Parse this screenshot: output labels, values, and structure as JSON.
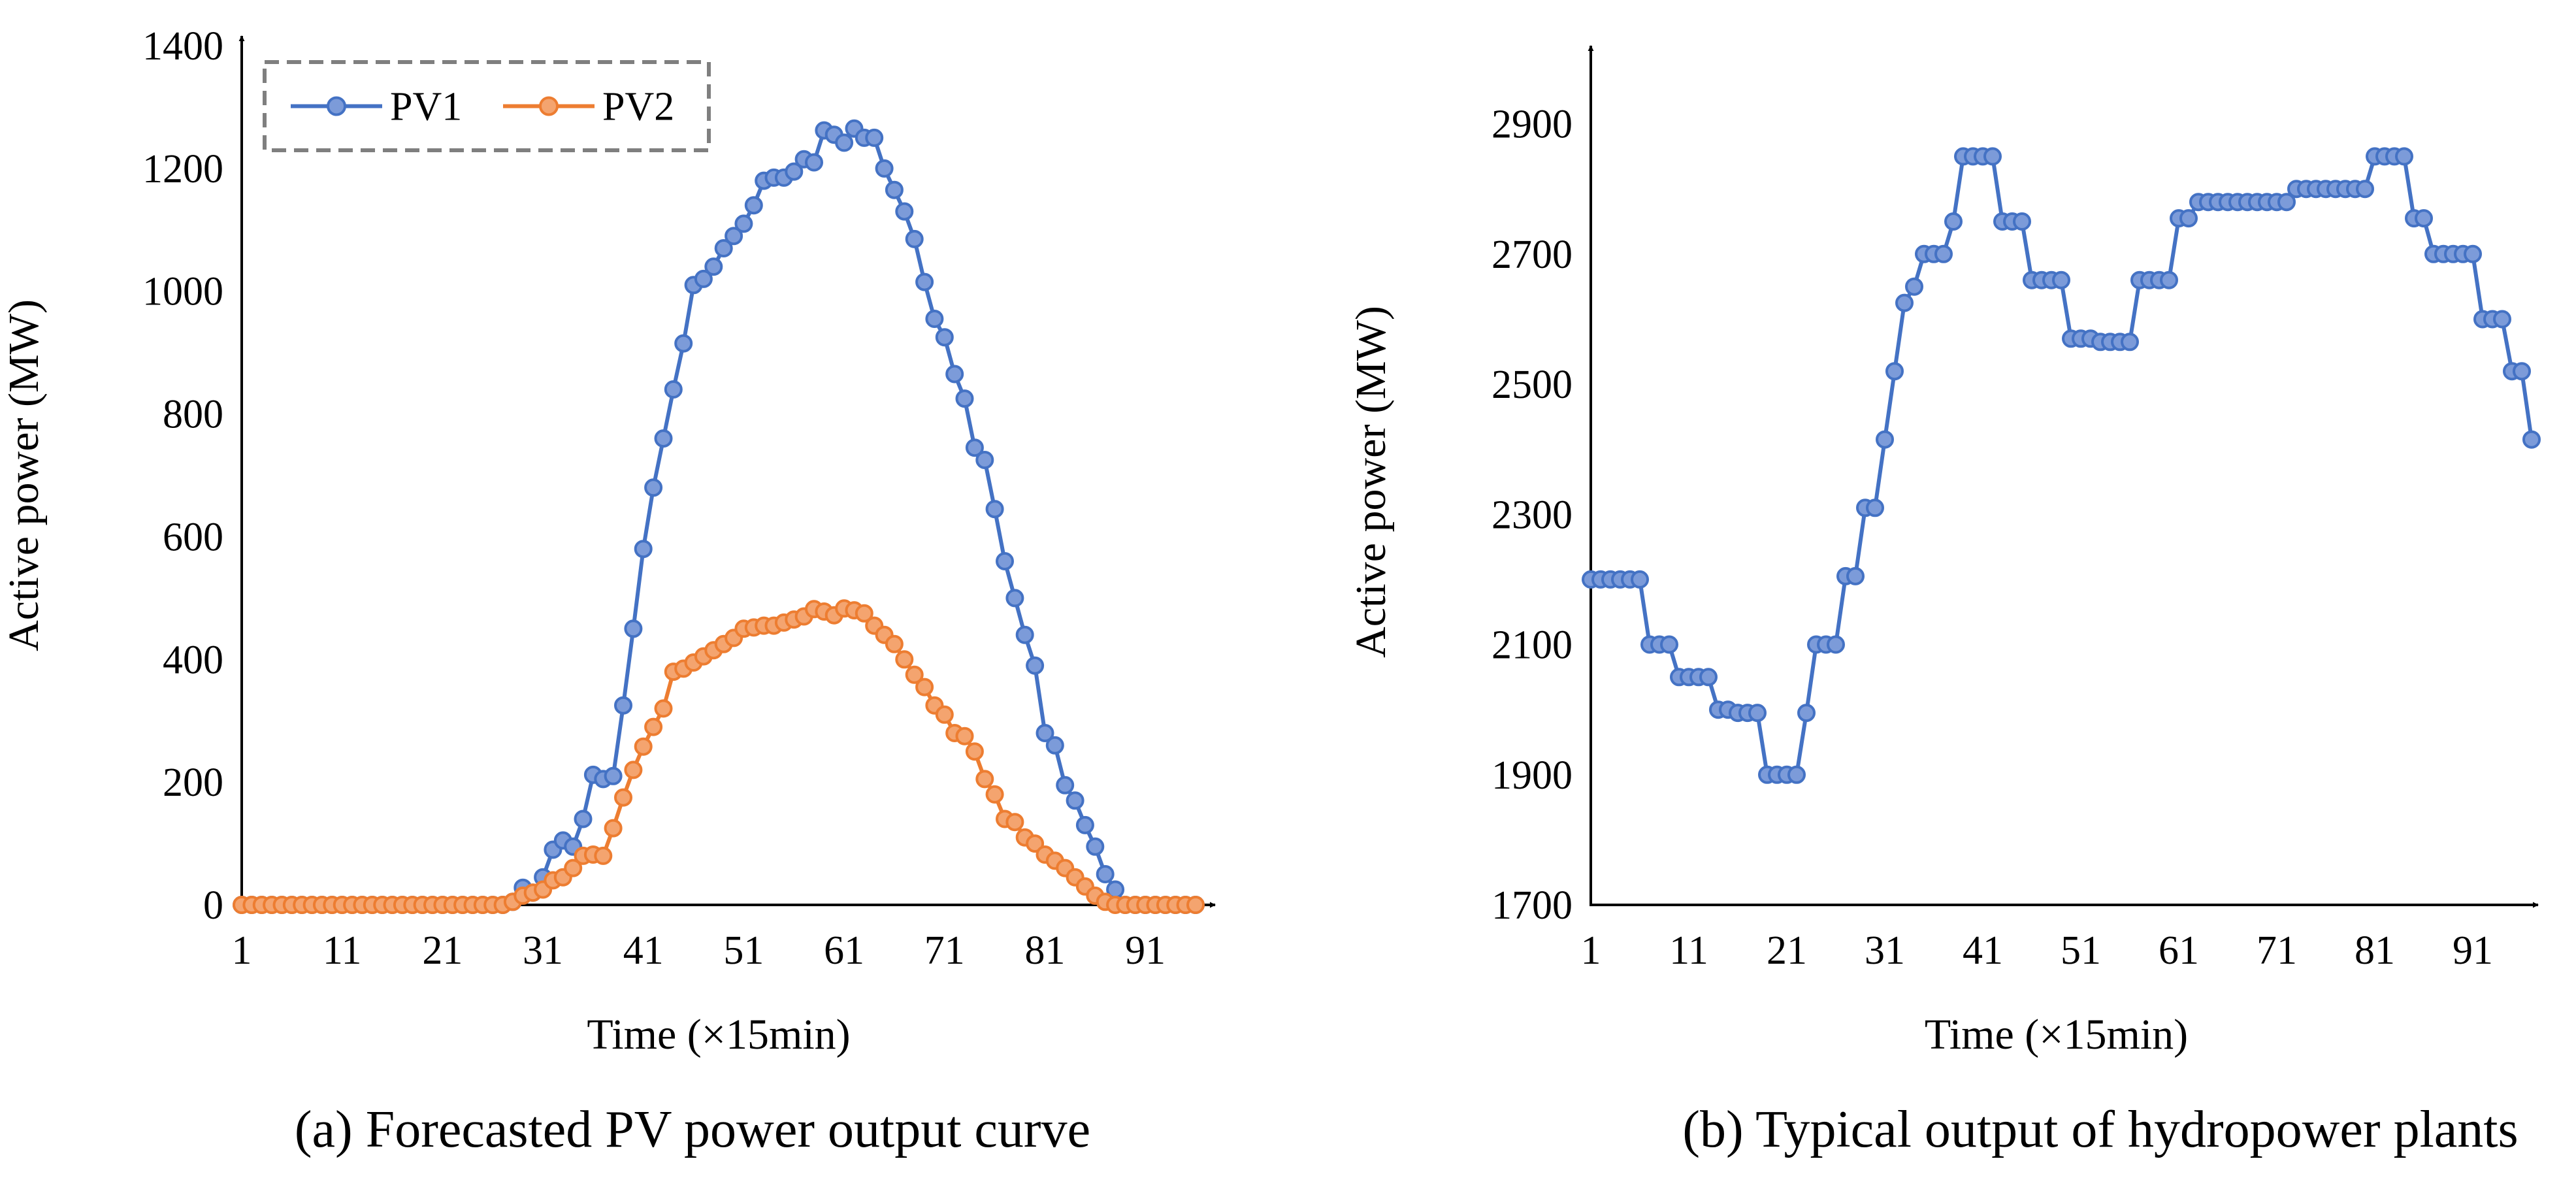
{
  "colors": {
    "pv1": "#4472C4",
    "pv1_marker": "#7C9BD9",
    "pv2": "#ED7D31",
    "pv2_marker": "#F4A46F",
    "hydro": "#4472C4",
    "hydro_marker": "#7C9BD9",
    "legend_border": "#7F7F7F",
    "axis": "#000000"
  },
  "chart_data": [
    {
      "type": "line",
      "caption": "(a) Forecasted PV power output curve",
      "xlabel": "Time (×15min)",
      "ylabel": "Active power (MW)",
      "xlim": [
        1,
        96
      ],
      "ylim": [
        0,
        1400
      ],
      "xticks": [
        1,
        11,
        21,
        31,
        41,
        51,
        61,
        71,
        81,
        91
      ],
      "xtick_labels": [
        "1",
        "11",
        "21",
        "31",
        "41",
        "51",
        "61",
        "71",
        "81",
        "91"
      ],
      "yticks": [
        0,
        200,
        400,
        600,
        800,
        1000,
        1200,
        1400
      ],
      "ytick_labels": [
        "0",
        "200",
        "400",
        "600",
        "800",
        "1000",
        "1200",
        "1400"
      ],
      "legend": {
        "position": "top-left",
        "entries": [
          "PV1",
          "PV2"
        ]
      },
      "series": [
        {
          "name": "PV1",
          "values": [
            0,
            0,
            0,
            0,
            0,
            0,
            0,
            0,
            0,
            0,
            0,
            0,
            0,
            0,
            0,
            0,
            0,
            0,
            0,
            0,
            0,
            0,
            0,
            0,
            0,
            0,
            0,
            5,
            28,
            20,
            45,
            90,
            105,
            95,
            140,
            212,
            205,
            210,
            325,
            450,
            580,
            680,
            760,
            840,
            915,
            1010,
            1020,
            1040,
            1070,
            1090,
            1110,
            1140,
            1180,
            1185,
            1185,
            1195,
            1215,
            1210,
            1262,
            1255,
            1242,
            1265,
            1250,
            1250,
            1200,
            1165,
            1130,
            1085,
            1015,
            955,
            925,
            865,
            825,
            745,
            725,
            645,
            560,
            500,
            440,
            390,
            280,
            260,
            195,
            170,
            130,
            95,
            50,
            25,
            0,
            0,
            0,
            0,
            0,
            0,
            0,
            0
          ]
        },
        {
          "name": "PV2",
          "values": [
            0,
            0,
            0,
            0,
            0,
            0,
            0,
            0,
            0,
            0,
            0,
            0,
            0,
            0,
            0,
            0,
            0,
            0,
            0,
            0,
            0,
            0,
            0,
            0,
            0,
            0,
            0,
            5,
            15,
            20,
            25,
            40,
            45,
            60,
            80,
            82,
            80,
            125,
            175,
            220,
            258,
            290,
            320,
            380,
            385,
            395,
            405,
            415,
            425,
            435,
            450,
            452,
            455,
            455,
            460,
            465,
            470,
            482,
            478,
            472,
            483,
            480,
            475,
            455,
            440,
            425,
            400,
            375,
            355,
            325,
            310,
            280,
            275,
            250,
            205,
            180,
            140,
            135,
            110,
            100,
            82,
            72,
            60,
            45,
            30,
            15,
            5,
            0,
            0,
            0,
            0,
            0,
            0,
            0,
            0,
            0
          ]
        }
      ]
    },
    {
      "type": "line",
      "caption": "(b) Typical output of hydropower plants",
      "xlabel": "Time (×15min)",
      "ylabel": "Active power (MW)",
      "xlim": [
        1,
        96
      ],
      "ylim": [
        1700,
        3000
      ],
      "xticks": [
        1,
        11,
        21,
        31,
        41,
        51,
        61,
        71,
        81,
        91
      ],
      "xtick_labels": [
        "1",
        "11",
        "21",
        "31",
        "41",
        "51",
        "61",
        "71",
        "81",
        "91"
      ],
      "yticks": [
        1700,
        1900,
        2100,
        2300,
        2500,
        2700,
        2900
      ],
      "ytick_labels": [
        "1700",
        "1900",
        "2100",
        "2300",
        "2500",
        "2700",
        "2900"
      ],
      "series": [
        {
          "name": "Hydropower",
          "values": [
            2200,
            2200,
            2200,
            2200,
            2200,
            2200,
            2100,
            2100,
            2100,
            2050,
            2050,
            2050,
            2050,
            2000,
            2000,
            1995,
            1995,
            1995,
            1900,
            1900,
            1900,
            1900,
            1995,
            2100,
            2100,
            2100,
            2205,
            2205,
            2310,
            2310,
            2415,
            2520,
            2625,
            2650,
            2700,
            2700,
            2700,
            2750,
            2850,
            2850,
            2850,
            2850,
            2750,
            2750,
            2750,
            2660,
            2660,
            2660,
            2660,
            2570,
            2570,
            2570,
            2565,
            2565,
            2565,
            2565,
            2660,
            2660,
            2660,
            2660,
            2755,
            2755,
            2780,
            2780,
            2780,
            2780,
            2780,
            2780,
            2780,
            2780,
            2780,
            2780,
            2800,
            2800,
            2800,
            2800,
            2800,
            2800,
            2800,
            2800,
            2850,
            2850,
            2850,
            2850,
            2755,
            2755,
            2700,
            2700,
            2700,
            2700,
            2700,
            2600,
            2600,
            2600,
            2520,
            2520,
            2415
          ]
        }
      ]
    }
  ]
}
